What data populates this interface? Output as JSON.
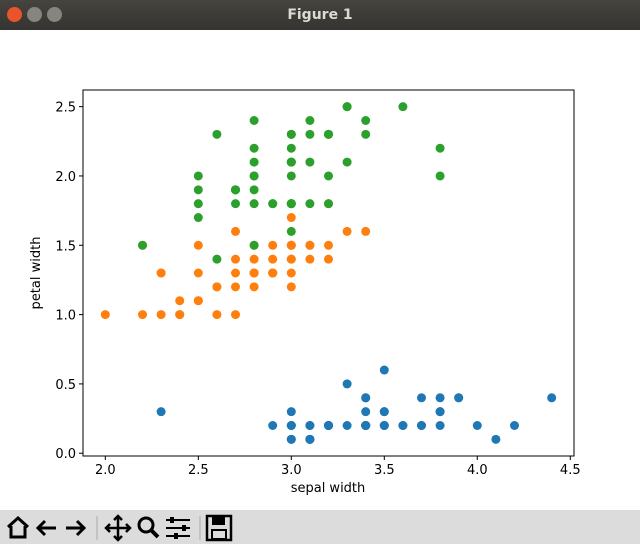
{
  "window_title": "Figure 1",
  "chart_data": {
    "type": "scatter",
    "xlabel": "sepal width",
    "ylabel": "petal width",
    "xlim": [
      1.88,
      4.52
    ],
    "ylim": [
      -0.02,
      2.62
    ],
    "xticks": [
      {
        "value": 2,
        "label": "2.0"
      },
      2.5,
      {
        "value": 3,
        "label": "3.0"
      },
      3.5,
      {
        "value": 4,
        "label": "4.0"
      },
      4.5
    ],
    "yticks": [
      {
        "value": 0,
        "label": "0.0"
      },
      0.5,
      {
        "value": 1,
        "label": "1.0"
      },
      1.5,
      {
        "value": 2,
        "label": "2.0"
      },
      2.5
    ],
    "series": [
      {
        "color": "#1f77b4",
        "x": [
          3.5,
          3.0,
          3.2,
          3.1,
          3.6,
          3.9,
          3.4,
          3.4,
          2.9,
          3.1,
          3.7,
          3.4,
          3.0,
          3.0,
          4.0,
          4.4,
          3.9,
          3.5,
          3.8,
          3.8,
          3.4,
          3.7,
          3.6,
          3.3,
          3.4,
          3.0,
          3.4,
          3.5,
          3.4,
          3.2,
          3.1,
          3.4,
          4.1,
          4.2,
          3.1,
          3.2,
          3.5,
          3.1,
          3.0,
          3.4,
          3.5,
          2.3,
          3.2,
          3.5,
          3.8,
          3.0,
          3.8,
          3.2,
          3.7,
          3.3
        ],
        "values": [
          0.2,
          0.2,
          0.2,
          0.2,
          0.2,
          0.4,
          0.3,
          0.2,
          0.2,
          0.1,
          0.2,
          0.2,
          0.1,
          0.1,
          0.2,
          0.4,
          0.4,
          0.3,
          0.3,
          0.3,
          0.2,
          0.4,
          0.2,
          0.5,
          0.2,
          0.2,
          0.4,
          0.2,
          0.2,
          0.2,
          0.2,
          0.4,
          0.1,
          0.2,
          0.1,
          0.2,
          0.2,
          0.1,
          0.2,
          0.2,
          0.3,
          0.3,
          0.2,
          0.6,
          0.4,
          0.3,
          0.2,
          0.2,
          0.2,
          0.2
        ]
      },
      {
        "color": "#ff7f0e",
        "x": [
          3.2,
          3.2,
          3.1,
          2.3,
          2.8,
          2.8,
          3.3,
          2.4,
          2.9,
          2.7,
          2.0,
          3.0,
          2.2,
          2.9,
          2.9,
          3.1,
          3.0,
          2.7,
          2.2,
          2.5,
          3.2,
          2.8,
          2.5,
          2.8,
          2.9,
          3.0,
          2.8,
          3.0,
          2.9,
          2.6,
          2.4,
          2.4,
          2.7,
          2.7,
          3.0,
          3.4,
          3.1,
          2.3,
          3.0,
          2.5,
          2.6,
          3.0,
          2.6,
          2.3,
          2.7,
          3.0,
          2.9,
          2.9,
          2.5,
          2.8
        ],
        "values": [
          1.4,
          1.5,
          1.5,
          1.3,
          1.5,
          1.3,
          1.6,
          1.0,
          1.3,
          1.4,
          1.0,
          1.5,
          1.0,
          1.4,
          1.3,
          1.4,
          1.5,
          1.0,
          1.5,
          1.1,
          1.8,
          1.3,
          1.5,
          1.2,
          1.3,
          1.4,
          1.4,
          1.7,
          1.5,
          1.0,
          1.1,
          1.0,
          1.2,
          1.6,
          1.5,
          1.6,
          1.5,
          1.3,
          1.3,
          1.3,
          1.2,
          1.4,
          1.2,
          1.0,
          1.3,
          1.2,
          1.3,
          1.3,
          1.1,
          1.3
        ]
      },
      {
        "color": "#2ca02c",
        "x": [
          3.3,
          2.7,
          3.0,
          2.9,
          3.0,
          3.0,
          2.5,
          2.9,
          2.5,
          3.6,
          3.2,
          2.7,
          3.0,
          2.5,
          2.8,
          3.2,
          3.0,
          3.8,
          2.6,
          2.2,
          3.2,
          2.8,
          2.8,
          2.7,
          3.3,
          3.2,
          2.8,
          3.0,
          2.8,
          3.0,
          2.8,
          3.8,
          2.8,
          2.8,
          2.6,
          3.0,
          3.4,
          3.1,
          3.0,
          3.1,
          3.1,
          3.1,
          2.7,
          3.2,
          3.3,
          3.0,
          2.5,
          3.0,
          3.4,
          3.0
        ],
        "values": [
          2.5,
          1.9,
          2.1,
          1.8,
          2.2,
          2.1,
          1.7,
          1.8,
          1.8,
          2.5,
          2.0,
          1.9,
          2.1,
          2.0,
          2.4,
          2.3,
          1.8,
          2.2,
          2.3,
          1.5,
          2.3,
          2.0,
          2.0,
          1.8,
          2.1,
          1.8,
          1.8,
          1.8,
          2.1,
          1.6,
          1.9,
          2.0,
          2.2,
          1.5,
          1.4,
          2.3,
          2.4,
          1.8,
          1.8,
          2.1,
          2.4,
          2.3,
          1.9,
          2.3,
          2.5,
          2.3,
          1.9,
          2.0,
          2.3,
          1.8
        ]
      }
    ]
  }
}
